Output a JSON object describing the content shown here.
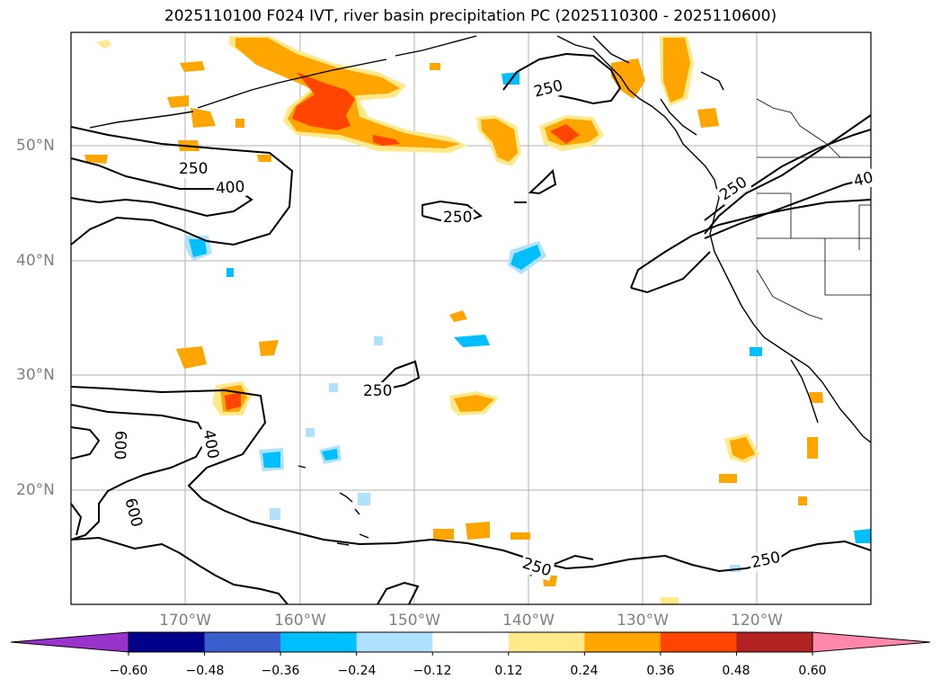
{
  "title": "2025110100 F024 IVT, river basin precipitation PC (2025110300 - 2025110600)",
  "map": {
    "lon_ticks": [
      "170°W",
      "160°W",
      "150°W",
      "140°W",
      "130°W",
      "120°W"
    ],
    "lat_ticks": [
      "50°N",
      "40°N",
      "30°N",
      "20°N"
    ],
    "contour_labels": [
      "250",
      "400",
      "250",
      "250",
      "250",
      "250",
      "600",
      "400",
      "600",
      "250",
      "250",
      "40"
    ],
    "gridlines": true
  },
  "colorbar": {
    "ticks": [
      "−0.60",
      "−0.48",
      "−0.36",
      "−0.24",
      "−0.12",
      "0.12",
      "0.24",
      "0.36",
      "0.48",
      "0.60"
    ],
    "colors": [
      "#9933cc",
      "#00008b",
      "#3a5fcd",
      "#00bfff",
      "#b0e2ff",
      "#ffffff",
      "#ffe98a",
      "#ffa500",
      "#ff4500",
      "#b22222",
      "#ff88aa"
    ],
    "extend": "both"
  }
}
